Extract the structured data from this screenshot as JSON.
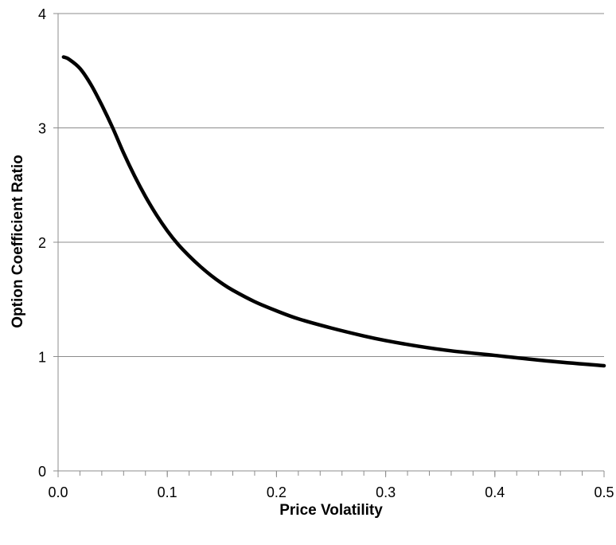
{
  "chart_data": {
    "type": "line",
    "title": "",
    "xlabel": "Price Volatility",
    "ylabel": "Option Coefficient Ratio",
    "xlim": [
      0.0,
      0.5
    ],
    "ylim": [
      0,
      4
    ],
    "x_ticks": [
      0.0,
      0.1,
      0.2,
      0.3,
      0.4,
      0.5
    ],
    "x_tick_labels": [
      "0.0",
      "0.1",
      "0.2",
      "0.3",
      "0.4",
      "0.5"
    ],
    "x_minor_tick_step": 0.02,
    "y_ticks": [
      0,
      1,
      2,
      3,
      4
    ],
    "y_tick_labels": [
      "0",
      "1",
      "2",
      "3",
      "4"
    ],
    "grid": "horizontal",
    "legend": "none",
    "line_color": "#000000",
    "grid_color": "#8c8c8c",
    "series": [
      {
        "x": [
          0.005,
          0.01,
          0.02,
          0.03,
          0.04,
          0.05,
          0.06,
          0.07,
          0.08,
          0.09,
          0.1,
          0.11,
          0.12,
          0.13,
          0.14,
          0.15,
          0.16,
          0.18,
          0.2,
          0.22,
          0.25,
          0.28,
          0.3,
          0.33,
          0.36,
          0.4,
          0.45,
          0.5
        ],
        "values": [
          3.62,
          3.6,
          3.52,
          3.38,
          3.2,
          3.0,
          2.78,
          2.58,
          2.4,
          2.24,
          2.1,
          1.98,
          1.88,
          1.79,
          1.71,
          1.64,
          1.58,
          1.48,
          1.4,
          1.33,
          1.25,
          1.18,
          1.14,
          1.09,
          1.05,
          1.01,
          0.96,
          0.92
        ]
      }
    ]
  }
}
